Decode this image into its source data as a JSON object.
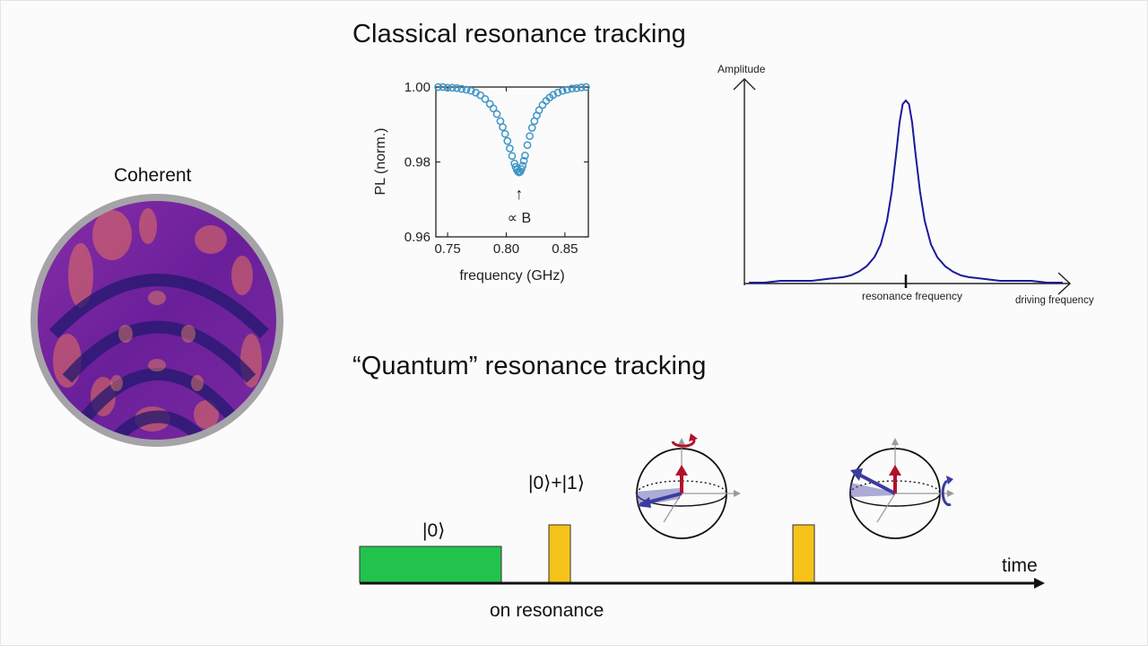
{
  "slide": {
    "coherent_label": "Coherent",
    "classical_heading": "Classical resonance tracking",
    "quantum_heading": "“Quantum” resonance tracking"
  },
  "pl_plot": {
    "ylabel": "PL (norm.)",
    "xlabel": "frequency (GHz)",
    "xticks": [
      "0.75",
      "0.80",
      "0.85"
    ],
    "yticks": [
      "1.00",
      "0.98",
      "0.96"
    ],
    "annotation": "∝ B",
    "marker_color": "#3f95c7"
  },
  "resonance_plot": {
    "ylabel": "Amplitude",
    "xlabel": "driving frequency",
    "peak_label": "resonance frequency",
    "curve_color": "#1a1a9c"
  },
  "sequence": {
    "state0_label": "|0⟩",
    "superposition_label": "|0⟩+|1⟩",
    "time_label": "time",
    "on_resonance_label": "on resonance",
    "init_color": "#22c34d",
    "pulse_color": "#f6c31a"
  },
  "chart_data": [
    {
      "type": "scatter",
      "xlabel": "frequency (GHz)",
      "ylabel": "PL (norm.)",
      "xlim": [
        0.74,
        0.87
      ],
      "ylim": [
        0.96,
        1.0
      ],
      "xticks": [
        0.75,
        0.8,
        0.85
      ],
      "yticks": [
        0.96,
        0.98,
        1.0
      ],
      "x": [
        0.742,
        0.746,
        0.75,
        0.754,
        0.758,
        0.762,
        0.766,
        0.77,
        0.774,
        0.778,
        0.782,
        0.786,
        0.789,
        0.792,
        0.795,
        0.797,
        0.799,
        0.801,
        0.803,
        0.805,
        0.807,
        0.808,
        0.809,
        0.81,
        0.811,
        0.812,
        0.813,
        0.814,
        0.815,
        0.816,
        0.818,
        0.82,
        0.822,
        0.824,
        0.826,
        0.828,
        0.831,
        0.834,
        0.837,
        0.84,
        0.844,
        0.848,
        0.852,
        0.856,
        0.86,
        0.864,
        0.868
      ],
      "y": [
        1.0,
        1.0,
        0.9998,
        0.9998,
        0.9997,
        0.9995,
        0.9993,
        0.999,
        0.9985,
        0.9978,
        0.9968,
        0.9955,
        0.9943,
        0.9928,
        0.9909,
        0.9893,
        0.9875,
        0.9856,
        0.9836,
        0.9816,
        0.9796,
        0.9787,
        0.9779,
        0.9774,
        0.9772,
        0.9774,
        0.9781,
        0.979,
        0.9803,
        0.9817,
        0.9845,
        0.9869,
        0.9891,
        0.9909,
        0.9924,
        0.9938,
        0.9952,
        0.9963,
        0.9972,
        0.9979,
        0.9985,
        0.999,
        0.9993,
        0.9996,
        0.9997,
        0.9999,
        1.0
      ],
      "annotations": [
        {
          "text": "∝ B",
          "x": 0.811
        }
      ]
    },
    {
      "type": "line",
      "xlabel": "driving frequency",
      "ylabel": "Amplitude",
      "x": [
        -1.0,
        -0.9,
        -0.8,
        -0.7,
        -0.6,
        -0.5,
        -0.4,
        -0.35,
        -0.3,
        -0.25,
        -0.2,
        -0.16,
        -0.12,
        -0.09,
        -0.06,
        -0.04,
        -0.02,
        0.0,
        0.02,
        0.04,
        0.06,
        0.09,
        0.12,
        0.16,
        0.2,
        0.25,
        0.3,
        0.35,
        0.4,
        0.5,
        0.6,
        0.7,
        0.8,
        0.9,
        1.0
      ],
      "y": [
        0.0,
        0.0,
        0.01,
        0.01,
        0.01,
        0.02,
        0.03,
        0.04,
        0.06,
        0.09,
        0.14,
        0.21,
        0.34,
        0.5,
        0.72,
        0.88,
        0.98,
        1.0,
        0.98,
        0.88,
        0.72,
        0.5,
        0.34,
        0.21,
        0.14,
        0.09,
        0.06,
        0.04,
        0.03,
        0.02,
        0.01,
        0.01,
        0.01,
        0.0,
        0.0
      ],
      "annotations": [
        {
          "text": "resonance frequency",
          "x": 0.0
        }
      ]
    }
  ]
}
